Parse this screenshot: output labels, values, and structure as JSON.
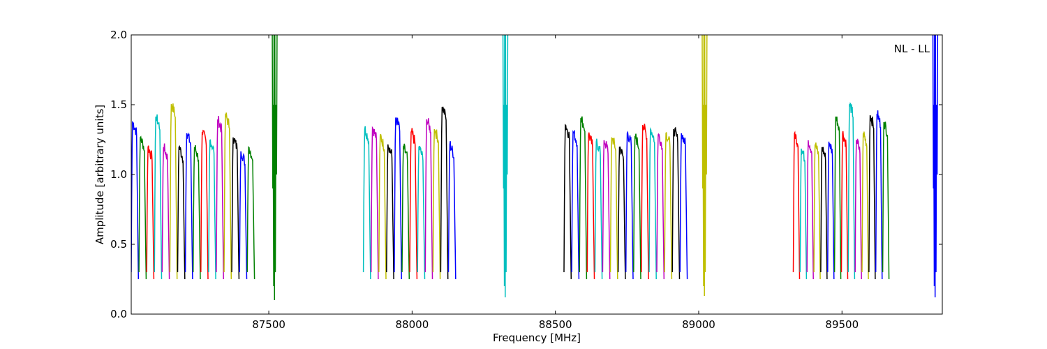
{
  "chart_data": {
    "type": "line",
    "title": "",
    "xlabel": "Frequency [MHz]",
    "ylabel": "Amplitude [arbitrary units]",
    "xlim": [
      87020,
      89850
    ],
    "ylim": [
      0.0,
      2.0
    ],
    "xticks": [
      87500,
      88000,
      88500,
      89000,
      89500
    ],
    "xtick_labels": [
      "87500",
      "88000",
      "88500",
      "89000",
      "89500"
    ],
    "yticks": [
      0.0,
      0.5,
      1.0,
      1.5,
      2.0
    ],
    "ytick_labels": [
      "0.0",
      "0.5",
      "1.0",
      "1.5",
      "2.0"
    ],
    "annotation": "NL - LL",
    "grid": false,
    "palette": [
      "#0000ff",
      "#008000",
      "#ff0000",
      "#00bfbf",
      "#bf00bf",
      "#bfbf00",
      "#000000"
    ],
    "bands": [
      {
        "name": "band1",
        "start": 87020,
        "subband_width": 27,
        "peaks": [
          1.38,
          1.27,
          1.2,
          1.42,
          1.2,
          1.51,
          1.2,
          1.3,
          1.2,
          1.31,
          1.25,
          1.4,
          1.43,
          1.27,
          1.17,
          1.2
        ],
        "spikes": [
          {
            "x": 87520,
            "color": "#008000",
            "min": 0.1
          }
        ]
      },
      {
        "name": "band2",
        "start": 87830,
        "subband_width": 27,
        "peaks": [
          1.33,
          1.34,
          1.28,
          1.22,
          1.41,
          1.2,
          1.31,
          1.2,
          1.4,
          1.33,
          1.49,
          1.22
        ],
        "spikes": [
          {
            "x": 88325,
            "color": "#00bfbf",
            "min": 0.12
          }
        ]
      },
      {
        "name": "band3",
        "start": 88530,
        "subband_width": 27,
        "peaks": [
          1.36,
          1.31,
          1.41,
          1.29,
          1.24,
          1.25,
          1.27,
          1.2,
          1.3,
          1.28,
          1.36,
          1.33,
          1.29,
          1.3,
          1.33,
          1.3
        ],
        "spikes": [
          {
            "x": 89020,
            "color": "#bfbf00",
            "min": 0.13
          }
        ]
      },
      {
        "name": "band4",
        "start": 89330,
        "subband_width": 24,
        "peaks": [
          1.3,
          1.19,
          1.25,
          1.22,
          1.2,
          1.24,
          1.42,
          1.3,
          1.51,
          1.25,
          1.3,
          1.43,
          1.44,
          1.38
        ],
        "spikes": [
          {
            "x": 89825,
            "color": "#0000ff",
            "min": 0.12
          }
        ]
      }
    ]
  }
}
